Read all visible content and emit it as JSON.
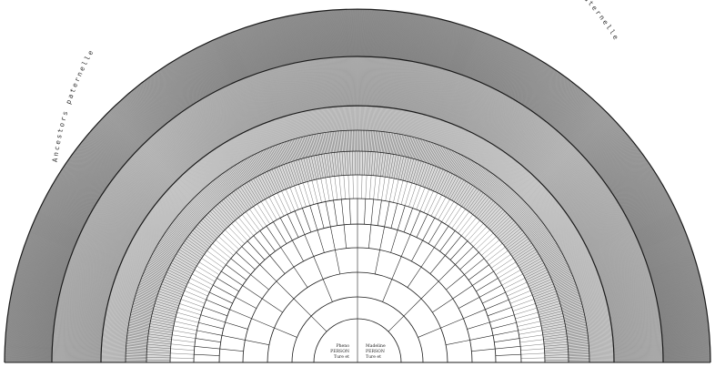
{
  "chart": {
    "kind": "genealogy-fan",
    "line_color": "#1a1a1a",
    "background": "#ffffff",
    "generations": 12
  },
  "captions": {
    "left": "Ancestors paternelle",
    "right": "Ancestors maternelle"
  },
  "root": {
    "left_lines": [
      "Pheno",
      "PERSON",
      "Ture et"
    ],
    "right_lines": [
      "Madeline",
      "PERSON",
      "Ture et"
    ]
  }
}
